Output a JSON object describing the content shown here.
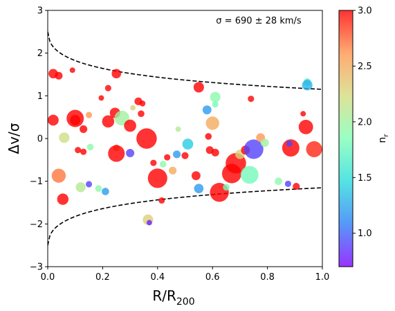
{
  "chart_data": {
    "type": "scatter",
    "xlabel": "R/R",
    "xlabel_sub": "200",
    "ylabel": "Δv/σ",
    "annotation": "σ = 690 ± 28 km/s",
    "xlim": [
      0.0,
      1.0
    ],
    "ylim": [
      -3,
      3
    ],
    "xticks": [
      "0.0",
      "0.2",
      "0.4",
      "0.6",
      "0.8",
      "1.0"
    ],
    "xtick_values": [
      0.0,
      0.2,
      0.4,
      0.6,
      0.8,
      1.0
    ],
    "yticks": [
      "−3",
      "−2",
      "−1",
      "0",
      "1",
      "2",
      "3"
    ],
    "ytick_values": [
      -3,
      -2,
      -1,
      0,
      1,
      2,
      3
    ],
    "grid": false,
    "caustic_curves": "dashed black upper and lower envelopes, ±2.5 at R=0 narrowing to about ±1.15 at R=1",
    "colorbar": {
      "label": "n",
      "label_sub": "r",
      "range": [
        0.7,
        3.0
      ],
      "ticks": [
        "1.0",
        "1.5",
        "2.0",
        "2.5",
        "3.0"
      ],
      "tick_values": [
        1.0,
        1.5,
        2.0,
        2.5,
        3.0
      ],
      "colormap": "rainbow",
      "colors": [
        "#8000ff",
        "#2c7ef7",
        "#2adcdc",
        "#80ffb4",
        "#d4dc7f",
        "#ff964f",
        "#ff0000"
      ]
    },
    "series": [
      {
        "points": [
          {
            "x": 0.02,
            "y": 1.52,
            "c": 3.0,
            "s": 90
          },
          {
            "x": 0.04,
            "y": 1.47,
            "c": 3.0,
            "s": 60
          },
          {
            "x": 0.02,
            "y": 0.43,
            "c": 3.0,
            "s": 120
          },
          {
            "x": 0.09,
            "y": 1.6,
            "c": 3.0,
            "s": 30
          },
          {
            "x": 0.1,
            "y": 0.47,
            "c": 3.0,
            "s": 300
          },
          {
            "x": 0.1,
            "y": 0.43,
            "c": 3.0,
            "s": 110
          },
          {
            "x": 0.13,
            "y": 0.22,
            "c": 3.0,
            "s": 60
          },
          {
            "x": 0.15,
            "y": 0.55,
            "c": 2.6,
            "s": 40
          },
          {
            "x": 0.06,
            "y": 0.02,
            "c": 2.2,
            "s": 110
          },
          {
            "x": 0.11,
            "y": -0.27,
            "c": 3.0,
            "s": 40
          },
          {
            "x": 0.13,
            "y": -0.31,
            "c": 3.0,
            "s": 40
          },
          {
            "x": 0.155,
            "y": -0.2,
            "c": 1.9,
            "s": 45
          },
          {
            "x": 0.04,
            "y": -0.87,
            "c": 2.7,
            "s": 200
          },
          {
            "x": 0.055,
            "y": -1.42,
            "c": 3.0,
            "s": 130
          },
          {
            "x": 0.12,
            "y": -1.14,
            "c": 2.1,
            "s": 100
          },
          {
            "x": 0.15,
            "y": -1.07,
            "c": 0.9,
            "s": 40
          },
          {
            "x": 0.185,
            "y": -1.17,
            "c": 1.9,
            "s": 45
          },
          {
            "x": 0.21,
            "y": -1.24,
            "c": 1.2,
            "s": 55
          },
          {
            "x": 0.22,
            "y": 1.18,
            "c": 3.0,
            "s": 40
          },
          {
            "x": 0.25,
            "y": 1.52,
            "c": 3.0,
            "s": 90
          },
          {
            "x": 0.195,
            "y": 0.95,
            "c": 3.0,
            "s": 30
          },
          {
            "x": 0.22,
            "y": 0.4,
            "c": 3.0,
            "s": 150
          },
          {
            "x": 0.245,
            "y": 0.6,
            "c": 3.0,
            "s": 110
          },
          {
            "x": 0.27,
            "y": 0.48,
            "c": 2.0,
            "s": 220
          },
          {
            "x": 0.3,
            "y": 0.3,
            "c": 3.0,
            "s": 150
          },
          {
            "x": 0.31,
            "y": 0.72,
            "c": 2.3,
            "s": 30
          },
          {
            "x": 0.33,
            "y": 0.87,
            "c": 3.0,
            "s": 60
          },
          {
            "x": 0.345,
            "y": 0.82,
            "c": 3.0,
            "s": 35
          },
          {
            "x": 0.34,
            "y": 0.58,
            "c": 3.0,
            "s": 45
          },
          {
            "x": 0.36,
            "y": 0.0,
            "c": 3.0,
            "s": 420
          },
          {
            "x": 0.25,
            "y": -0.22,
            "c": 2.7,
            "s": 45
          },
          {
            "x": 0.25,
            "y": -0.35,
            "c": 3.0,
            "s": 280
          },
          {
            "x": 0.3,
            "y": -0.34,
            "c": 0.9,
            "s": 70
          },
          {
            "x": 0.385,
            "y": -0.57,
            "c": 3.0,
            "s": 40
          },
          {
            "x": 0.4,
            "y": -0.93,
            "c": 3.0,
            "s": 380
          },
          {
            "x": 0.415,
            "y": -1.45,
            "c": 3.0,
            "s": 40
          },
          {
            "x": 0.365,
            "y": -1.9,
            "c": 2.3,
            "s": 110
          },
          {
            "x": 0.37,
            "y": -1.97,
            "c": 0.8,
            "s": 30
          },
          {
            "x": 0.42,
            "y": -0.6,
            "c": 1.9,
            "s": 45
          },
          {
            "x": 0.435,
            "y": -0.44,
            "c": 3.0,
            "s": 40
          },
          {
            "x": 0.455,
            "y": -0.75,
            "c": 2.5,
            "s": 60
          },
          {
            "x": 0.47,
            "y": -0.37,
            "c": 1.2,
            "s": 60
          },
          {
            "x": 0.5,
            "y": -0.4,
            "c": 3.0,
            "s": 50
          },
          {
            "x": 0.51,
            "y": -0.13,
            "c": 1.4,
            "s": 120
          },
          {
            "x": 0.475,
            "y": 0.22,
            "c": 2.1,
            "s": 30
          },
          {
            "x": 0.55,
            "y": 1.2,
            "c": 3.0,
            "s": 110
          },
          {
            "x": 0.54,
            "y": -0.87,
            "c": 3.0,
            "s": 80
          },
          {
            "x": 0.55,
            "y": -1.17,
            "c": 1.2,
            "s": 90
          },
          {
            "x": 0.58,
            "y": 0.67,
            "c": 1.2,
            "s": 80
          },
          {
            "x": 0.61,
            "y": 0.97,
            "c": 1.9,
            "s": 110
          },
          {
            "x": 0.61,
            "y": 0.8,
            "c": 1.8,
            "s": 40
          },
          {
            "x": 0.6,
            "y": 0.36,
            "c": 2.5,
            "s": 180
          },
          {
            "x": 0.585,
            "y": 0.05,
            "c": 3.0,
            "s": 45
          },
          {
            "x": 0.59,
            "y": -0.27,
            "c": 3.0,
            "s": 60
          },
          {
            "x": 0.61,
            "y": -0.33,
            "c": 3.0,
            "s": 60
          },
          {
            "x": 0.625,
            "y": -1.26,
            "c": 3.0,
            "s": 360
          },
          {
            "x": 0.65,
            "y": -1.14,
            "c": 1.8,
            "s": 45
          },
          {
            "x": 0.67,
            "y": -0.82,
            "c": 3.0,
            "s": 380
          },
          {
            "x": 0.685,
            "y": -0.58,
            "c": 3.0,
            "s": 420
          },
          {
            "x": 0.7,
            "y": -0.37,
            "c": 2.3,
            "s": 90
          },
          {
            "x": 0.72,
            "y": -0.27,
            "c": 3.0,
            "s": 80
          },
          {
            "x": 0.735,
            "y": -0.85,
            "c": 1.8,
            "s": 320
          },
          {
            "x": 0.75,
            "y": -0.25,
            "c": 0.9,
            "s": 380
          },
          {
            "x": 0.74,
            "y": 0.93,
            "c": 3.0,
            "s": 40
          },
          {
            "x": 0.775,
            "y": 0.02,
            "c": 2.6,
            "s": 80
          },
          {
            "x": 0.79,
            "y": -0.1,
            "c": 2.0,
            "s": 70
          },
          {
            "x": 0.84,
            "y": -1.0,
            "c": 1.9,
            "s": 55
          },
          {
            "x": 0.875,
            "y": -1.06,
            "c": 0.9,
            "s": 40
          },
          {
            "x": 0.885,
            "y": -0.22,
            "c": 3.0,
            "s": 300
          },
          {
            "x": 0.88,
            "y": -0.12,
            "c": 0.9,
            "s": 40
          },
          {
            "x": 0.905,
            "y": -1.12,
            "c": 3.0,
            "s": 50
          },
          {
            "x": 0.93,
            "y": 0.58,
            "c": 3.0,
            "s": 30
          },
          {
            "x": 0.94,
            "y": 0.27,
            "c": 3.0,
            "s": 210
          },
          {
            "x": 0.945,
            "y": 1.32,
            "c": 1.6,
            "s": 55
          },
          {
            "x": 0.945,
            "y": 1.25,
            "c": 1.3,
            "s": 110
          },
          {
            "x": 0.97,
            "y": -0.25,
            "c": 2.9,
            "s": 260
          }
        ]
      }
    ]
  }
}
